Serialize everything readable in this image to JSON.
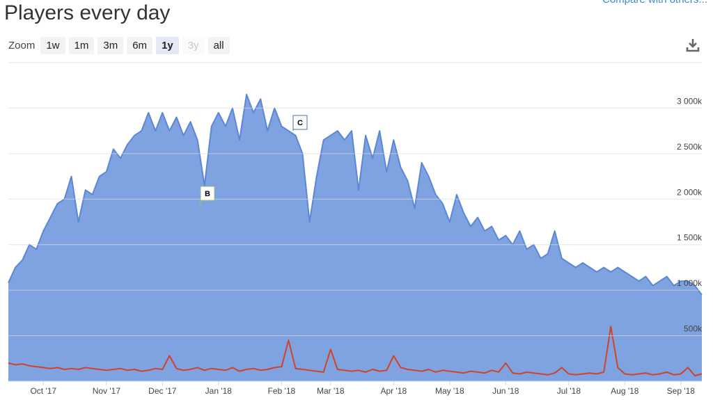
{
  "header": {
    "title": "Players every day",
    "compare_link": "Compare with others..."
  },
  "zoom": {
    "label": "Zoom",
    "buttons": [
      "1w",
      "1m",
      "3m",
      "6m",
      "1y",
      "3y",
      "all"
    ],
    "active": "1y",
    "disabled": [
      "3y"
    ]
  },
  "chart_data": {
    "type": "area",
    "categories": [
      null,
      null,
      null,
      null,
      null,
      "Oct '17",
      null,
      null,
      null,
      null,
      null,
      null,
      null,
      null,
      "Nov '17",
      null,
      null,
      null,
      null,
      null,
      null,
      null,
      "Dec '17",
      null,
      null,
      null,
      null,
      null,
      null,
      null,
      "Jan '18",
      null,
      null,
      null,
      null,
      null,
      null,
      null,
      null,
      "Feb '18",
      null,
      null,
      null,
      null,
      null,
      null,
      "Mar '18",
      null,
      null,
      null,
      null,
      null,
      null,
      null,
      null,
      "Apr '18",
      null,
      null,
      null,
      null,
      null,
      null,
      null,
      "May '18",
      null,
      null,
      null,
      null,
      null,
      null,
      null,
      "Jun '18",
      null,
      null,
      null,
      null,
      null,
      null,
      null,
      null,
      "Jul '18",
      null,
      null,
      null,
      null,
      null,
      null,
      null,
      "Aug '18",
      null,
      null,
      null,
      null,
      null,
      null,
      null,
      "Sep '18",
      null,
      null,
      null
    ],
    "series": [
      {
        "color": "#5b87d6",
        "fill": "#7fa2e0",
        "values": [
          1080000,
          1250000,
          1330000,
          1500000,
          1450000,
          1650000,
          1800000,
          1950000,
          2000000,
          2250000,
          1750000,
          2100000,
          2050000,
          2250000,
          2300000,
          2550000,
          2450000,
          2600000,
          2700000,
          2750000,
          2950000,
          2750000,
          2950000,
          2750000,
          2900000,
          2700000,
          2850000,
          2650000,
          2150000,
          2800000,
          2950000,
          2800000,
          3000000,
          2650000,
          3150000,
          2950000,
          3100000,
          2750000,
          3000000,
          2800000,
          2750000,
          2700000,
          2500000,
          1750000,
          2250000,
          2650000,
          2700000,
          2750000,
          2650000,
          2750000,
          2100000,
          2700000,
          2450000,
          2750000,
          2300000,
          2650000,
          2350000,
          2200000,
          1900000,
          2400000,
          2250000,
          2050000,
          1950000,
          1750000,
          2050000,
          1850000,
          1700000,
          1800000,
          1650000,
          1700000,
          1550000,
          1600000,
          1500000,
          1650000,
          1450000,
          1500000,
          1350000,
          1400000,
          1650000,
          1350000,
          1300000,
          1250000,
          1300000,
          1250000,
          1200000,
          1250000,
          1200000,
          1250000,
          1200000,
          1150000,
          1100000,
          1150000,
          1050000,
          1100000,
          1150000,
          1050000,
          1100000,
          1100000,
          1050000,
          950000
        ]
      },
      {
        "color": "#d0432b",
        "values": [
          200000,
          180000,
          190000,
          170000,
          160000,
          150000,
          140000,
          150000,
          130000,
          140000,
          130000,
          150000,
          140000,
          130000,
          120000,
          130000,
          140000,
          120000,
          130000,
          110000,
          120000,
          140000,
          130000,
          280000,
          140000,
          120000,
          130000,
          150000,
          120000,
          140000,
          130000,
          120000,
          150000,
          110000,
          130000,
          140000,
          120000,
          130000,
          150000,
          160000,
          450000,
          140000,
          130000,
          120000,
          110000,
          100000,
          350000,
          130000,
          120000,
          110000,
          120000,
          100000,
          130000,
          110000,
          120000,
          280000,
          150000,
          130000,
          120000,
          110000,
          130000,
          100000,
          120000,
          110000,
          100000,
          90000,
          110000,
          100000,
          90000,
          120000,
          100000,
          200000,
          90000,
          80000,
          100000,
          90000,
          80000,
          70000,
          90000,
          150000,
          80000,
          70000,
          80000,
          90000,
          80000,
          100000,
          600000,
          150000,
          80000,
          70000,
          80000,
          90000,
          70000,
          80000,
          100000,
          70000,
          80000,
          150000,
          60000,
          80000
        ]
      }
    ],
    "ylim": [
      0,
      3500000
    ],
    "yticks": [
      {
        "value": 500000,
        "label": "500k"
      },
      {
        "value": 1000000,
        "label": "1 000k"
      },
      {
        "value": 1500000,
        "label": "1 500k"
      },
      {
        "value": 2000000,
        "label": "2 000k"
      },
      {
        "value": 2500000,
        "label": "2 500k"
      },
      {
        "value": 3000000,
        "label": "3 000k"
      }
    ],
    "grid": true,
    "annotations": [
      "B",
      "C"
    ]
  }
}
